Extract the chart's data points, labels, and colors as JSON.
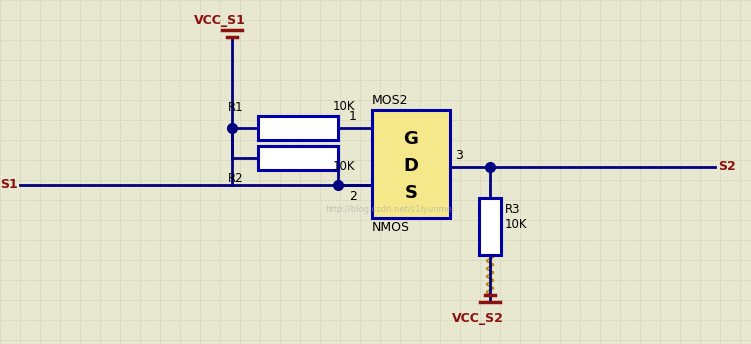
{
  "bg_color": "#e8e8d0",
  "grid_color": "#d0d0b8",
  "wire_color": "#000080",
  "label_color": "#8B1010",
  "black": "#000000",
  "component_fill": "#f5e88a",
  "component_border": "#0000aa",
  "watermark": "http://blog.csdn.net/s1lyunmei",
  "watermark_color": "#aaaaaa",
  "vcc_s1": "VCC_S1",
  "vcc_s2": "VCC_S2",
  "s1": "S1",
  "s2": "S2",
  "mos_label": "MOS2",
  "nmos_label": "NMOS",
  "r1_label": "R1",
  "r2_label": "R2",
  "r3_label": "R3",
  "r1_val": "10K",
  "r2_val": "10K",
  "r3_val": "10K",
  "g_label": "G",
  "d_label": "D",
  "s_label": "S",
  "pin1": "1",
  "pin2": "2",
  "pin3": "3"
}
